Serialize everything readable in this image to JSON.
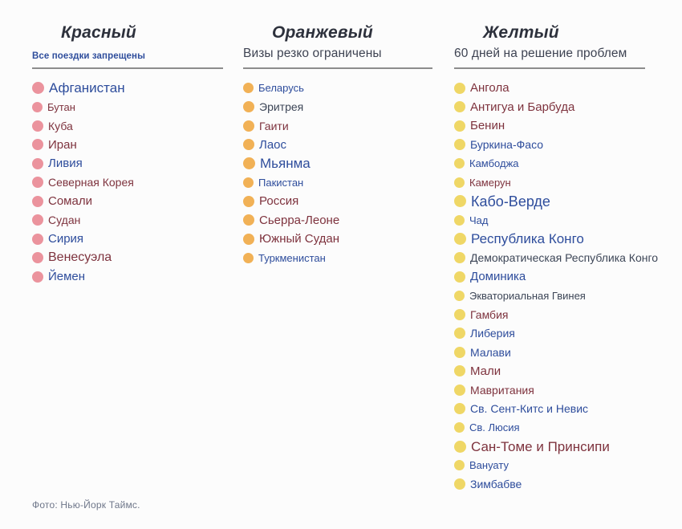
{
  "colors": {
    "background": "#fcfcfc",
    "header_text": "#2d313c",
    "divider": "#8d8d8d",
    "text_blue": "#2e4d9c",
    "text_maroon": "#7e333e",
    "text_navy": "#3d4657",
    "footer_text": "#6e7689",
    "red_dot": "#eb939d",
    "orange_dot": "#f1b156",
    "yellow_dot": "#efd766"
  },
  "footer": {
    "text": "Фото: Нью-Йорк Таймс."
  },
  "columns": [
    {
      "id": "red",
      "title": "Красный",
      "subtitle": "Все поездки запрещены",
      "dot_color": "#eb939d",
      "items": [
        {
          "label": "Афганистан",
          "tone": "blue",
          "size": 17
        },
        {
          "label": "Бутан",
          "tone": "maroon",
          "size": 13
        },
        {
          "label": "Куба",
          "tone": "maroon",
          "size": 14
        },
        {
          "label": "Иран",
          "tone": "maroon",
          "size": 15
        },
        {
          "label": "Ливия",
          "tone": "blue",
          "size": 15
        },
        {
          "label": "Северная Корея",
          "tone": "maroon",
          "size": 14
        },
        {
          "label": "Сомали",
          "tone": "maroon",
          "size": 15
        },
        {
          "label": "Судан",
          "tone": "maroon",
          "size": 14
        },
        {
          "label": "Сирия",
          "tone": "blue",
          "size": 15
        },
        {
          "label": "Венесуэла",
          "tone": "maroon",
          "size": 16
        },
        {
          "label": "Йемен",
          "tone": "blue",
          "size": 15
        }
      ]
    },
    {
      "id": "orange",
      "title": "Оранжевый",
      "subtitle": "Визы резко ограничены",
      "dot_color": "#f1b156",
      "items": [
        {
          "label": "Беларусь",
          "tone": "blue",
          "size": 13
        },
        {
          "label": "Эритрея",
          "tone": "navy",
          "size": 14
        },
        {
          "label": "Гаити",
          "tone": "maroon",
          "size": 14
        },
        {
          "label": "Лаос",
          "tone": "blue",
          "size": 15
        },
        {
          "label": "Мьянма",
          "tone": "blue",
          "size": 17
        },
        {
          "label": "Пакистан",
          "tone": "blue",
          "size": 13
        },
        {
          "label": "Россия",
          "tone": "maroon",
          "size": 15
        },
        {
          "label": "Сьерра-Леоне",
          "tone": "maroon",
          "size": 15
        },
        {
          "label": "Южный Судан",
          "tone": "maroon",
          "size": 15
        },
        {
          "label": "Туркменистан",
          "tone": "blue",
          "size": 13
        }
      ]
    },
    {
      "id": "yellow",
      "title": "Желтый",
      "subtitle": "60 дней на решение проблем",
      "dot_color": "#efd766",
      "items": [
        {
          "label": "Ангола",
          "tone": "maroon",
          "size": 15
        },
        {
          "label": "Антигуа и Барбуда",
          "tone": "maroon",
          "size": 15
        },
        {
          "label": "Бенин",
          "tone": "maroon",
          "size": 15
        },
        {
          "label": "Буркина-Фасо",
          "tone": "blue",
          "size": 14
        },
        {
          "label": "Камбоджа",
          "tone": "blue",
          "size": 13
        },
        {
          "label": "Камерун",
          "tone": "maroon",
          "size": 13
        },
        {
          "label": "Кабо-Верде",
          "tone": "blue",
          "size": 18
        },
        {
          "label": "Чад",
          "tone": "blue",
          "size": 13
        },
        {
          "label": "Республика Конго",
          "tone": "blue",
          "size": 17
        },
        {
          "label": "Демократическая Республика Конго",
          "tone": "navy",
          "size": 14
        },
        {
          "label": "Доминика",
          "tone": "blue",
          "size": 15
        },
        {
          "label": "Экваториальная Гвинея",
          "tone": "navy",
          "size": 13
        },
        {
          "label": "Гамбия",
          "tone": "maroon",
          "size": 14
        },
        {
          "label": "Либерия",
          "tone": "blue",
          "size": 14
        },
        {
          "label": "Малави",
          "tone": "blue",
          "size": 14
        },
        {
          "label": "Мали",
          "tone": "maroon",
          "size": 15
        },
        {
          "label": "Мавритания",
          "tone": "maroon",
          "size": 14
        },
        {
          "label": "Св. Сент-Китс и Невис",
          "tone": "blue",
          "size": 14
        },
        {
          "label": "Св. Люсия",
          "tone": "blue",
          "size": 13
        },
        {
          "label": "Сан-Томе и Принсипи",
          "tone": "maroon",
          "size": 17
        },
        {
          "label": "Вануату",
          "tone": "blue",
          "size": 13
        },
        {
          "label": "Зимбабве",
          "tone": "blue",
          "size": 14
        }
      ]
    }
  ],
  "chart_data": {
    "type": "table",
    "title": "",
    "legend_position": "none",
    "columns": [
      {
        "category": "Красный",
        "rule": "Все поездки запрещены",
        "dot_color": "#eb939d",
        "countries": [
          "Афганистан",
          "Бутан",
          "Куба",
          "Иран",
          "Ливия",
          "Северная Корея",
          "Сомали",
          "Судан",
          "Сирия",
          "Венесуэла",
          "Йемен"
        ]
      },
      {
        "category": "Оранжевый",
        "rule": "Визы резко ограничены",
        "dot_color": "#f1b156",
        "countries": [
          "Беларусь",
          "Эритрея",
          "Гаити",
          "Лаос",
          "Мьянма",
          "Пакистан",
          "Россия",
          "Сьерра-Леоне",
          "Южный Судан",
          "Туркменистан"
        ]
      },
      {
        "category": "Желтый",
        "rule": "60 дней на решение проблем",
        "dot_color": "#efd766",
        "countries": [
          "Ангола",
          "Антигуа и Барбуда",
          "Бенин",
          "Буркина-Фасо",
          "Камбоджа",
          "Камерун",
          "Кабо-Верде",
          "Чад",
          "Республика Конго",
          "Демократическая Республика Конго",
          "Доминика",
          "Экваториальная Гвинея",
          "Гамбия",
          "Либерия",
          "Малави",
          "Мали",
          "Мавритания",
          "Св. Сент-Китс и Невис",
          "Св. Люсия",
          "Сан-Томе и Принсипи",
          "Вануату",
          "Зимбабве"
        ]
      }
    ],
    "annotations": [
      "Фото: Нью-Йорк Таймс."
    ]
  }
}
